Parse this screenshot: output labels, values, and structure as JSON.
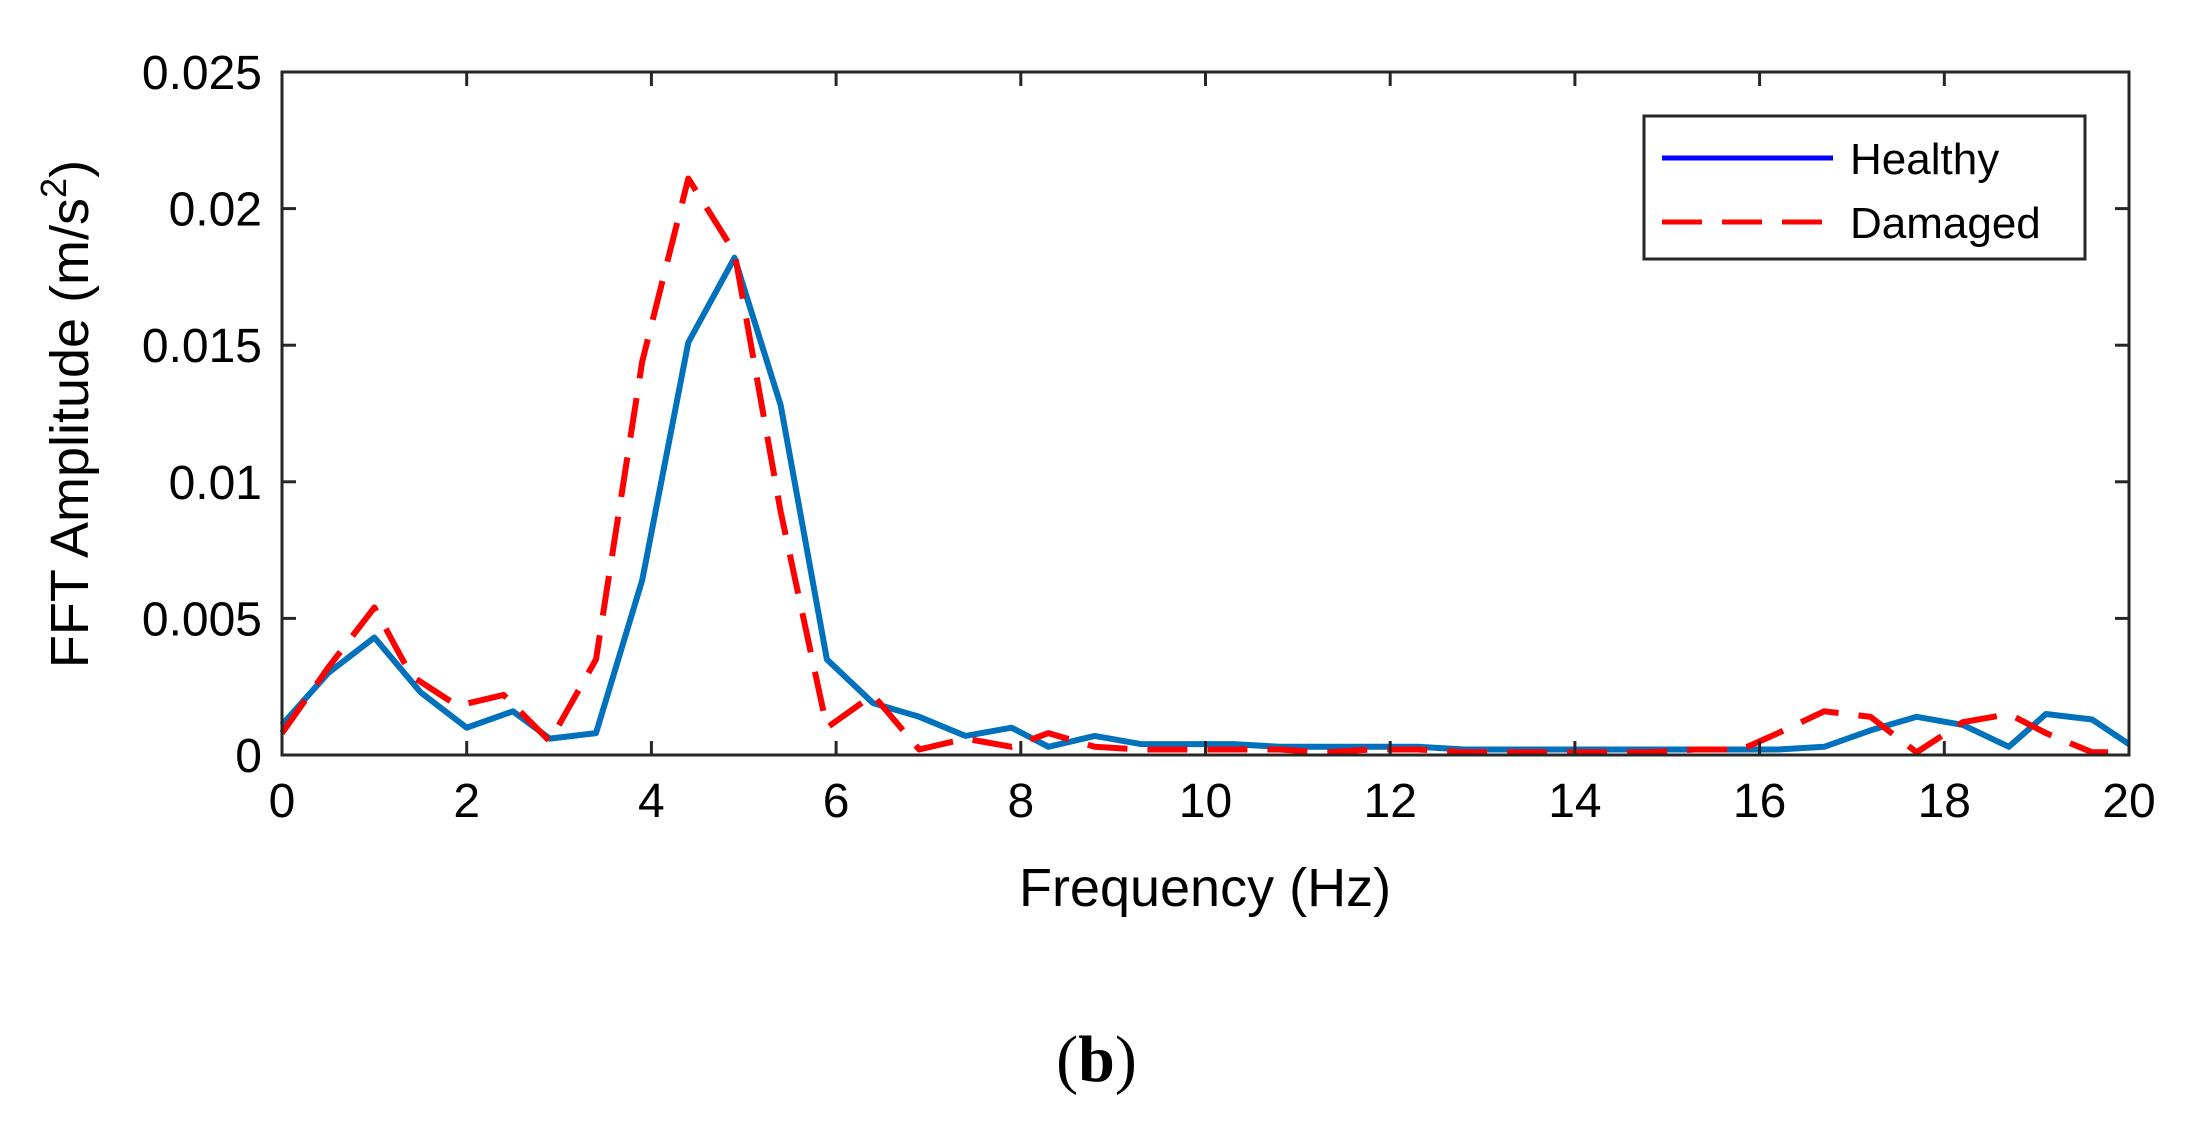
{
  "chart_data": {
    "type": "line",
    "title": "",
    "xlabel": "Frequency (Hz)",
    "ylabel": "FFT Amplitude (m/s",
    "ylabel_sup": "2",
    "ylabel_close": ")",
    "xlim": [
      0,
      20
    ],
    "ylim": [
      0,
      0.025
    ],
    "xticks": [
      0,
      2,
      4,
      6,
      8,
      10,
      12,
      14,
      16,
      18,
      20
    ],
    "xtick_labels": [
      "0",
      "2",
      "4",
      "6",
      "8",
      "10",
      "12",
      "14",
      "16",
      "18",
      "20"
    ],
    "yticks": [
      0,
      0.005,
      0.01,
      0.015,
      0.02,
      0.025
    ],
    "ytick_labels": [
      "0",
      "0.005",
      "0.01",
      "0.015",
      "0.02",
      "0.025"
    ],
    "grid": false,
    "legend_position": "top-right",
    "legend_handle_color": "#0000ff",
    "series": [
      {
        "name": "Healthy",
        "color": "#0072bd",
        "style": "solid",
        "x": [
          0,
          0.5,
          1,
          1.5,
          2,
          2.5,
          2.9,
          3.4,
          3.9,
          4.4,
          4.9,
          5.4,
          5.9,
          6.4,
          6.9,
          7.4,
          7.9,
          8.3,
          8.8,
          9.3,
          9.8,
          10.3,
          10.8,
          11.3,
          11.8,
          12.3,
          12.8,
          13.3,
          13.8,
          14.3,
          14.8,
          15.3,
          15.8,
          16.2,
          16.7,
          17.2,
          17.7,
          18.2,
          18.7,
          19.1,
          19.6,
          20
        ],
        "values": [
          0.0011,
          0.003,
          0.0043,
          0.0023,
          0.001,
          0.0016,
          0.0006,
          0.0008,
          0.0064,
          0.0151,
          0.0182,
          0.0128,
          0.0035,
          0.0019,
          0.0014,
          0.0007,
          0.001,
          0.0003,
          0.0007,
          0.0004,
          0.0004,
          0.0004,
          0.0003,
          0.0003,
          0.0003,
          0.0003,
          0.0002,
          0.0002,
          0.0002,
          0.0002,
          0.0002,
          0.0002,
          0.0002,
          0.0002,
          0.0003,
          0.0009,
          0.0014,
          0.0011,
          0.0003,
          0.0015,
          0.0013,
          0.0004
        ]
      },
      {
        "name": "Damaged",
        "color": "#ff0000",
        "style": "dashed",
        "x": [
          0,
          0.5,
          1,
          1.4,
          1.9,
          2.4,
          2.9,
          3.4,
          3.9,
          4.4,
          4.9,
          5.4,
          5.9,
          6.4,
          6.9,
          7.4,
          7.9,
          8.3,
          8.8,
          9.3,
          9.8,
          10.3,
          10.8,
          11.3,
          11.8,
          12.3,
          12.8,
          13.3,
          13.8,
          14.3,
          14.8,
          15.3,
          15.8,
          16.2,
          16.7,
          17.2,
          17.7,
          18.2,
          18.7,
          19.1,
          19.6,
          20
        ],
        "values": [
          0.0008,
          0.0032,
          0.0054,
          0.0029,
          0.0018,
          0.0022,
          0.0005,
          0.0035,
          0.0144,
          0.0211,
          0.0184,
          0.0089,
          0.001,
          0.0022,
          0.0002,
          0.0006,
          0.0003,
          0.0008,
          0.0003,
          0.0002,
          0.0002,
          0.0002,
          0.0002,
          0.0001,
          0.0002,
          0.0002,
          0.0001,
          0.0001,
          0.0001,
          0.0001,
          0.0001,
          0.0002,
          0.0002,
          0.0008,
          0.0016,
          0.0014,
          0.0001,
          0.0012,
          0.0015,
          0.0008,
          0.0001,
          0.0001
        ]
      }
    ]
  },
  "caption": {
    "open": "(",
    "letter": "b",
    "close": ")"
  }
}
